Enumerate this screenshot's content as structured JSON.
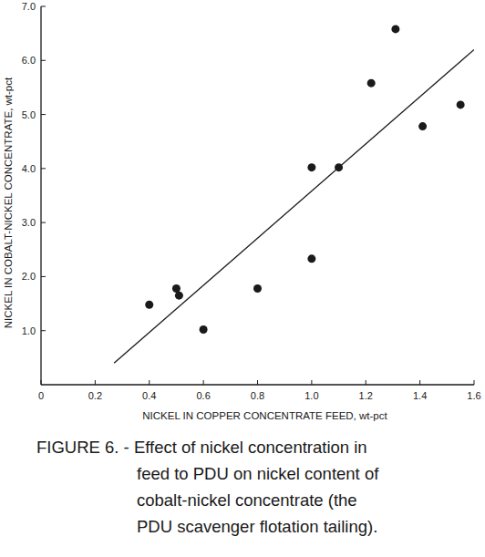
{
  "chart_data": {
    "type": "scatter",
    "title": "FIGURE 6. - Effect of nickel concentration in\nfeed to PDU on nickel content of\ncobalt-nickel concentrate (the\nPDU scavenger flotation tailing).",
    "x_label": "NICKEL IN COPPER CONCENTRATE FEED, wt-pct",
    "y_label": "NICKEL IN COBALT-NICKEL CONCENTRATE, wt-pct",
    "series": [
      {
        "type": "scatter",
        "marker": "circle",
        "color": "#1a1a1a",
        "x": [
          0.4,
          0.5,
          0.51,
          0.6,
          0.8,
          1.0,
          1.0,
          1.1,
          1.22,
          1.31,
          1.41,
          1.55
        ],
        "values": [
          1.48,
          1.78,
          1.65,
          1.02,
          1.78,
          2.33,
          4.02,
          4.02,
          5.58,
          6.58,
          4.78,
          5.18
        ]
      },
      {
        "type": "line",
        "line_style": "solid",
        "color": "#1a1a1a",
        "x": [
          0.27,
          1.6
        ],
        "values": [
          0.4,
          6.2
        ]
      }
    ],
    "xlim": [
      0,
      1.6
    ],
    "ylim": [
      0,
      7
    ],
    "xticks": [
      0,
      0.2,
      0.4,
      0.6,
      0.8,
      {
        "value": 1,
        "label": "1.0"
      },
      1.2,
      1.4,
      1.6
    ],
    "yticks": [
      {
        "value": 1,
        "label": "1.0"
      },
      {
        "value": 2,
        "label": "2.0"
      },
      {
        "value": 3,
        "label": "3.0"
      },
      {
        "value": 4,
        "label": "4.0"
      },
      {
        "value": 5,
        "label": "5.0"
      },
      {
        "value": 6,
        "label": "6.0"
      },
      {
        "value": 7,
        "label": "7.0"
      }
    ],
    "grid": false
  }
}
